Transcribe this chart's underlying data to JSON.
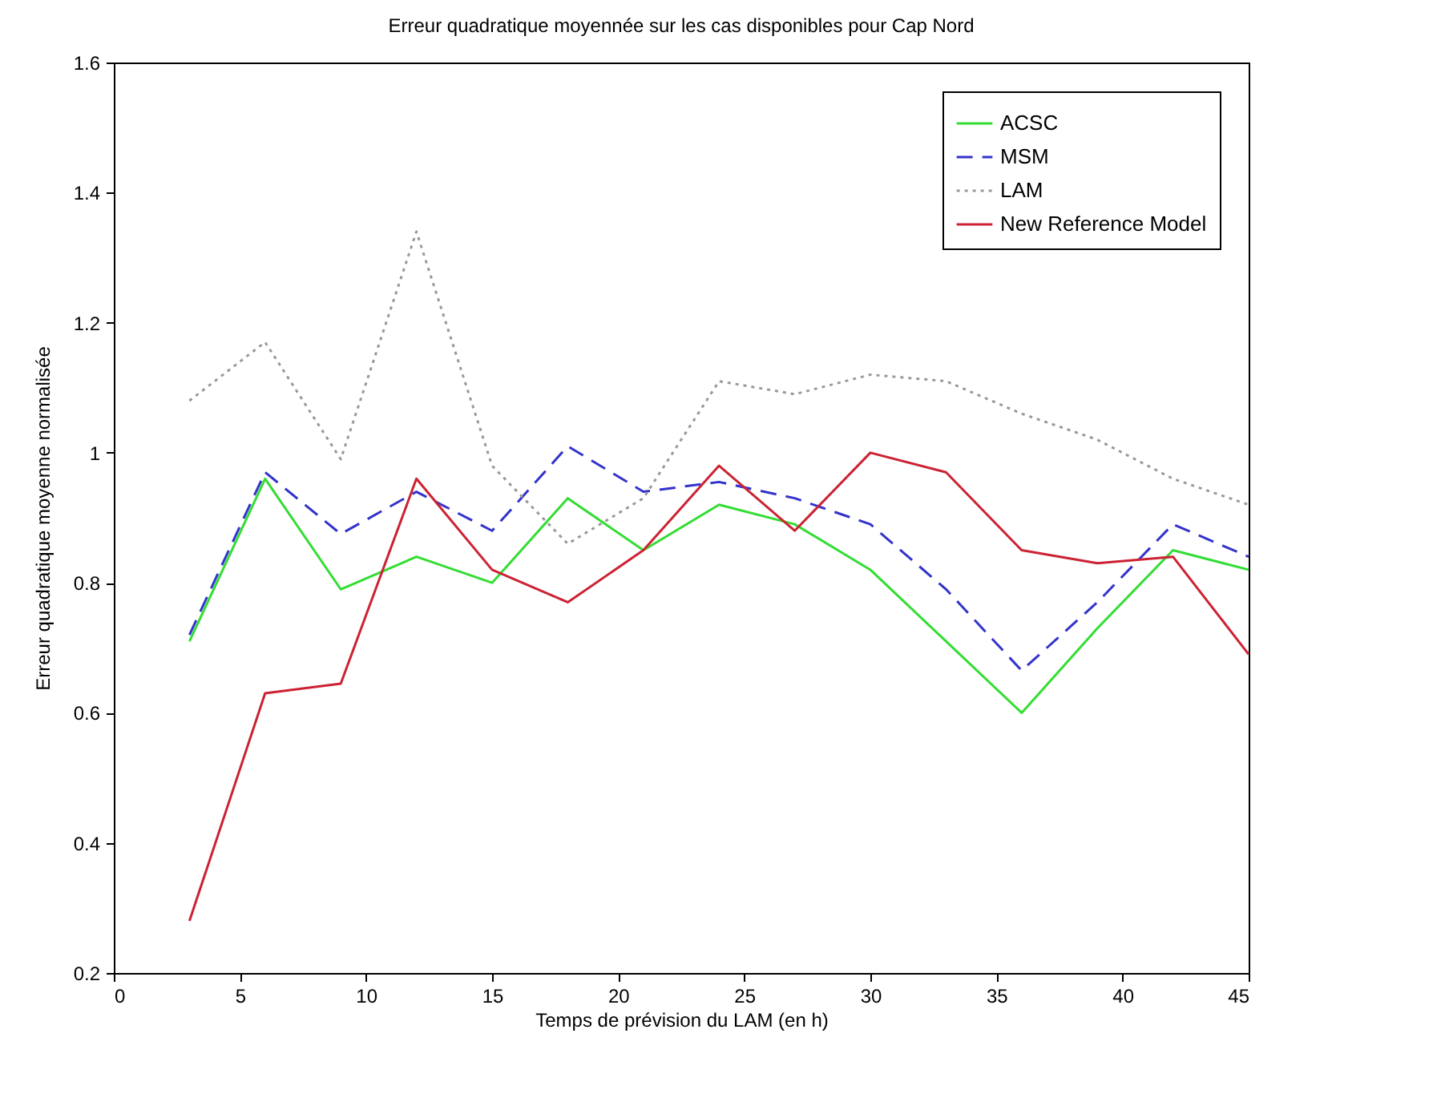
{
  "chart_data": {
    "type": "line",
    "title": "Erreur quadratique moyennée sur les cas disponibles pour Cap Nord",
    "xlabel": "Temps de prévision du LAM (en h)",
    "ylabel": "Erreur quadratique moyenne normalisée",
    "x": [
      3,
      6,
      9,
      12,
      15,
      18,
      21,
      24,
      27,
      30,
      33,
      36,
      39,
      42,
      45
    ],
    "series": [
      {
        "name": "ACSC",
        "color": "#33dd33",
        "line_style": "solid",
        "values": [
          0.71,
          0.96,
          0.79,
          0.84,
          0.8,
          0.93,
          0.85,
          0.92,
          0.89,
          0.82,
          0.71,
          0.6,
          0.73,
          0.85,
          0.82
        ]
      },
      {
        "name": "MSM",
        "color": "#3333cc",
        "line_style": "dashed",
        "values": [
          0.72,
          0.97,
          0.875,
          0.94,
          0.88,
          1.01,
          0.94,
          0.955,
          0.93,
          0.89,
          0.79,
          0.665,
          0.77,
          0.89,
          0.84
        ]
      },
      {
        "name": "LAM",
        "color": "#999999",
        "line_style": "dotted",
        "values": [
          1.08,
          1.17,
          0.99,
          1.34,
          0.98,
          0.86,
          0.93,
          1.11,
          1.09,
          1.12,
          1.11,
          1.06,
          1.02,
          0.96,
          0.92
        ]
      },
      {
        "name": "New Reference Model",
        "color": "#cc2233",
        "line_style": "solid",
        "values": [
          0.28,
          0.63,
          0.645,
          0.96,
          0.82,
          0.77,
          0.85,
          0.98,
          0.88,
          1.0,
          0.97,
          0.85,
          0.83,
          0.84,
          0.69
        ]
      }
    ],
    "xlim": [
      0,
      45
    ],
    "xticks": [
      0,
      5,
      10,
      15,
      20,
      25,
      30,
      35,
      40,
      45
    ],
    "ylim": [
      0.2,
      1.6
    ],
    "yticks": [
      0.2,
      0.4,
      0.6,
      0.8,
      1,
      1.2,
      1.4,
      1.6
    ],
    "legend": "top right",
    "grid": false
  }
}
